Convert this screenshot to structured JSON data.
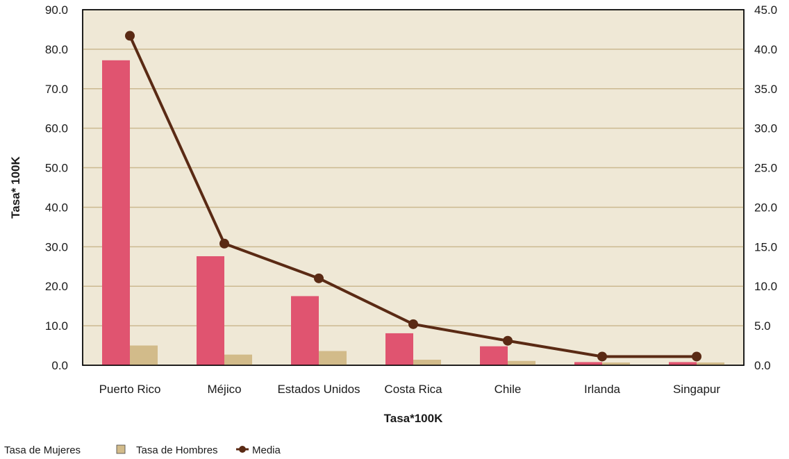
{
  "chart_data": {
    "type": "bar",
    "categories": [
      "Puerto Rico",
      "Méjico",
      "Estados Unidos",
      "Costa Rica",
      "Chile",
      "Irlanda",
      "Singapur"
    ],
    "series": [
      {
        "name": "Tasa de Mujeres",
        "type": "bar",
        "axis": "left",
        "color": "#e05470",
        "values": [
          77.2,
          27.6,
          17.5,
          8.1,
          4.8,
          0.8,
          0.8
        ]
      },
      {
        "name": "Tasa de Hombres",
        "type": "bar",
        "axis": "left",
        "color": "#d2bb8a",
        "values": [
          5.0,
          2.7,
          3.6,
          1.4,
          1.1,
          0.7,
          0.7
        ]
      },
      {
        "name": "Media",
        "type": "line",
        "axis": "right",
        "color": "#5a2a14",
        "values": [
          41.7,
          15.4,
          11.0,
          5.2,
          3.1,
          1.1,
          1.1
        ]
      }
    ],
    "ylabel": "Tasa* 100K",
    "xlabel": "Tasa*100K",
    "ylim": [
      0,
      90
    ],
    "y2lim": [
      0,
      45
    ],
    "yticks": [
      "0.0",
      "10.0",
      "20.0",
      "30.0",
      "40.0",
      "50.0",
      "60.0",
      "70.0",
      "80.0",
      "90.0"
    ],
    "y2ticks": [
      "0.0",
      "5.0",
      "10.0",
      "15.0",
      "20.0",
      "25.0",
      "30.0",
      "35.0",
      "40.0",
      "45.0"
    ],
    "grid": true,
    "plot_background": "#efe8d6",
    "grid_color": "#cbb990",
    "legend_position": "bottom-left"
  }
}
